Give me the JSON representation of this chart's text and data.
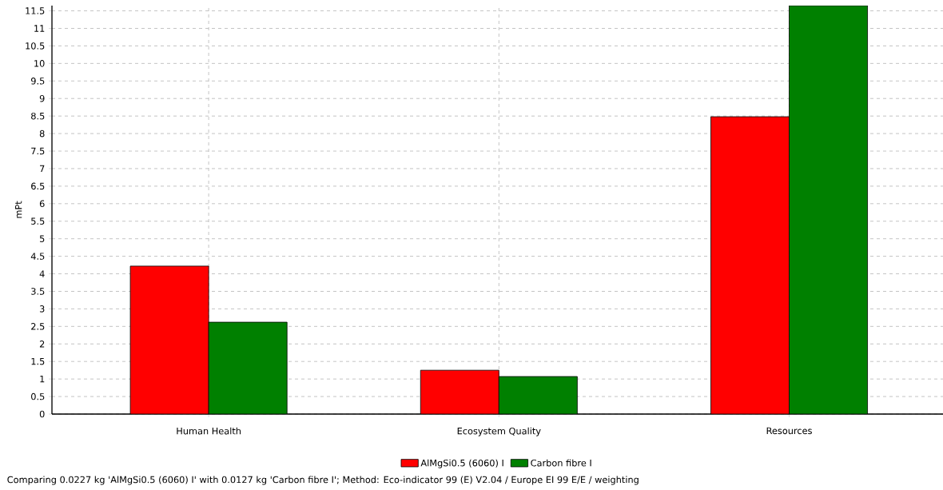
{
  "chart_data": {
    "type": "bar",
    "ylabel": "mPt",
    "categories": [
      "Human Health",
      "Ecosystem Quality",
      "Resources"
    ],
    "series": [
      {
        "name": "AlMgSi0.5 (6060) I",
        "color": "#ff0000",
        "values": [
          4.22,
          1.25,
          8.48
        ]
      },
      {
        "name": "Carbon fibre I",
        "color": "#008000",
        "values": [
          2.62,
          1.07,
          11.65
        ]
      }
    ],
    "ylim": [
      0,
      11.65
    ],
    "yticks": [
      0,
      0.5,
      1,
      1.5,
      2,
      2.5,
      3,
      3.5,
      4,
      4.5,
      5,
      5.5,
      6,
      6.5,
      7,
      7.5,
      8,
      8.5,
      9,
      9.5,
      10,
      10.5,
      11,
      11.5
    ],
    "grid": true,
    "legend": "bottom",
    "annotations": [
      "Comparing 0.0227 kg 'AlMgSi0.5 (6060) I' with 0.0127 kg 'Carbon fibre I';  Method: Eco-indicator 99 (E) V2.04 / Europe EI 99 E/E / weighting"
    ]
  }
}
